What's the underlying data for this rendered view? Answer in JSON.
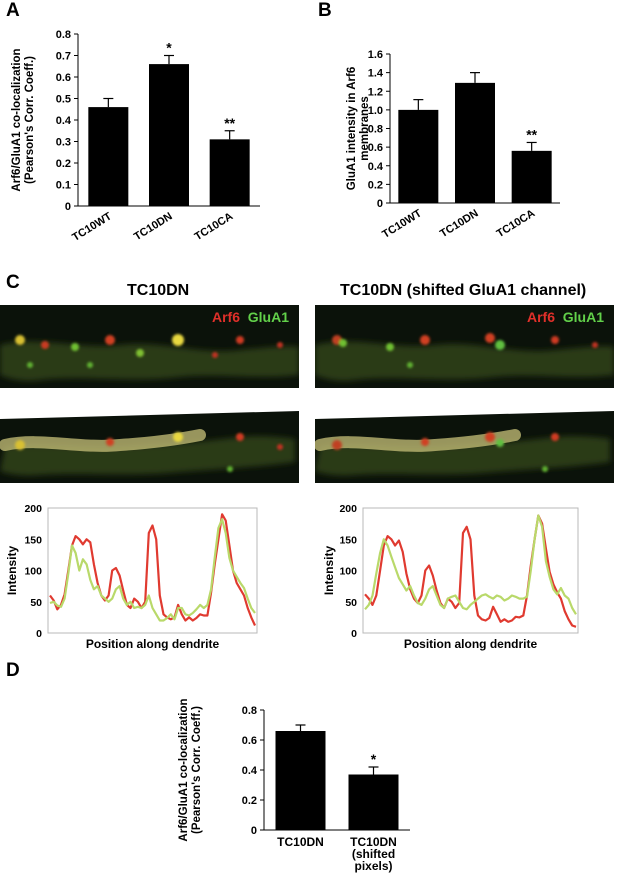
{
  "panels": {
    "A": "A",
    "B": "B",
    "C": "C",
    "D": "D"
  },
  "panel_c": {
    "left_title": "TC10DN",
    "right_title": "TC10DN (shifted GluA1 channel)",
    "channel_red": "Arf6",
    "channel_green": "GluA1",
    "red_color": "#e03a30",
    "green_color": "#b9d96a"
  },
  "chart_data": [
    {
      "id": "A",
      "type": "bar",
      "categories": [
        "TC10WT",
        "TC10DN",
        "TC10CA"
      ],
      "values": [
        0.46,
        0.66,
        0.31
      ],
      "errors": [
        0.04,
        0.04,
        0.04
      ],
      "annotations": [
        "",
        "*",
        "**"
      ],
      "ylabel": "Arf6/GluA1 co-localization (Pearson's Corr. Coeff.)",
      "ylabel_lines": [
        "Arf6/GluA1 co-localization",
        "(Pearson's Corr. Coeff.)"
      ],
      "ylim": [
        0,
        0.8
      ],
      "yticks": [
        "0",
        "0.1",
        "0.2",
        "0.3",
        "0.4",
        "0.5",
        "0.6",
        "0.7",
        "0.8"
      ],
      "yticks_values": [
        0,
        0.1,
        0.2,
        0.3,
        0.4,
        0.5,
        0.6,
        0.7,
        0.8
      ],
      "bar_color": "#000000"
    },
    {
      "id": "B",
      "type": "bar",
      "categories": [
        "TC10WT",
        "TC10DN",
        "TC10CA"
      ],
      "values": [
        1.0,
        1.29,
        0.56
      ],
      "errors": [
        0.11,
        0.11,
        0.09
      ],
      "annotations": [
        "",
        "",
        "**"
      ],
      "ylabel": "GluA1 intensity in Arf6 membranes",
      "ylabel_lines": [
        "GluA1 intensity in Arf6",
        "membranes"
      ],
      "ylim": [
        0,
        1.6
      ],
      "yticks": [
        "0",
        "0.2",
        "0.4",
        "0.6",
        "0.8",
        "1.0",
        "1.2",
        "1.4",
        "1.6"
      ],
      "yticks_values": [
        0,
        0.2,
        0.4,
        0.6,
        0.8,
        1.0,
        1.2,
        1.4,
        1.6
      ],
      "bar_color": "#000000"
    },
    {
      "id": "C-left",
      "type": "line",
      "xlabel": "Position along dendrite",
      "ylabel": "Intensity",
      "ylim": [
        0,
        200
      ],
      "yticks": [
        "0",
        "50",
        "100",
        "150",
        "200"
      ],
      "yticks_values": [
        0,
        50,
        100,
        150,
        200
      ],
      "series": [
        {
          "values": [
            60,
            52,
            38,
            45,
            62,
            100,
            140,
            155,
            150,
            142,
            150,
            145,
            110,
            80,
            60,
            52,
            60,
            100,
            104,
            92,
            68,
            45,
            40,
            55,
            50,
            40,
            50,
            160,
            172,
            150,
            60,
            30,
            25,
            22,
            25,
            45,
            30,
            20,
            25,
            20,
            24,
            30,
            28,
            28,
            65,
            110,
            150,
            190,
            180,
            140,
            100,
            80,
            70,
            60,
            40,
            25,
            12
          ]
        },
        {
          "values": [
            48,
            50,
            44,
            42,
            55,
            95,
            140,
            128,
            100,
            118,
            110,
            85,
            70,
            75,
            60,
            55,
            50,
            55,
            70,
            75,
            55,
            45,
            50,
            40,
            42,
            40,
            45,
            60,
            40,
            30,
            20,
            20,
            24,
            30,
            22,
            40,
            40,
            30,
            28,
            32,
            38,
            45,
            40,
            45,
            70,
            120,
            168,
            182,
            160,
            120,
            100,
            90,
            80,
            72,
            55,
            40,
            32
          ]
        }
      ]
    },
    {
      "id": "C-right",
      "type": "line",
      "xlabel": "Position along dendrite",
      "ylabel": "Intensity",
      "ylim": [
        0,
        200
      ],
      "yticks": [
        "0",
        "50",
        "100",
        "150",
        "200"
      ],
      "yticks_values": [
        0,
        50,
        100,
        150,
        200
      ],
      "series": [
        {
          "values": [
            62,
            55,
            45,
            60,
            100,
            140,
            155,
            150,
            140,
            148,
            130,
            95,
            70,
            55,
            48,
            60,
            100,
            108,
            92,
            68,
            48,
            40,
            55,
            50,
            40,
            48,
            160,
            170,
            150,
            60,
            28,
            22,
            20,
            24,
            42,
            30,
            18,
            22,
            18,
            20,
            26,
            25,
            28,
            60,
            108,
            150,
            188,
            175,
            135,
            98,
            78,
            65,
            55,
            35,
            22,
            12,
            10
          ]
        },
        {
          "values": [
            38,
            45,
            60,
            95,
            128,
            150,
            140,
            122,
            105,
            88,
            78,
            68,
            75,
            60,
            48,
            45,
            55,
            70,
            75,
            60,
            45,
            40,
            55,
            58,
            60,
            50,
            40,
            38,
            45,
            50,
            55,
            60,
            62,
            58,
            55,
            60,
            58,
            52,
            55,
            60,
            58,
            55,
            55,
            58,
            100,
            150,
            188,
            170,
            115,
            90,
            70,
            62,
            72,
            60,
            55,
            40,
            30
          ]
        }
      ]
    },
    {
      "id": "D",
      "type": "bar",
      "categories": [
        "TC10DN",
        "TC10DN (shifted pixels)"
      ],
      "category_lines": [
        [
          "TC10DN"
        ],
        [
          "TC10DN",
          "(shifted",
          "pixels)"
        ]
      ],
      "values": [
        0.66,
        0.37
      ],
      "errors": [
        0.04,
        0.05
      ],
      "annotations": [
        "",
        "*"
      ],
      "ylabel": "Arf6/GluA1 co-localization (Pearson's Corr. Coeff.)",
      "ylabel_lines": [
        "Arf6/GluA1 co-localization",
        "(Pearson's Corr. Coeff.)"
      ],
      "ylim": [
        0,
        0.8
      ],
      "yticks": [
        "0",
        "0.2",
        "0.4",
        "0.6",
        "0.8"
      ],
      "yticks_values": [
        0,
        0.2,
        0.4,
        0.6,
        0.8
      ],
      "bar_color": "#000000"
    }
  ]
}
